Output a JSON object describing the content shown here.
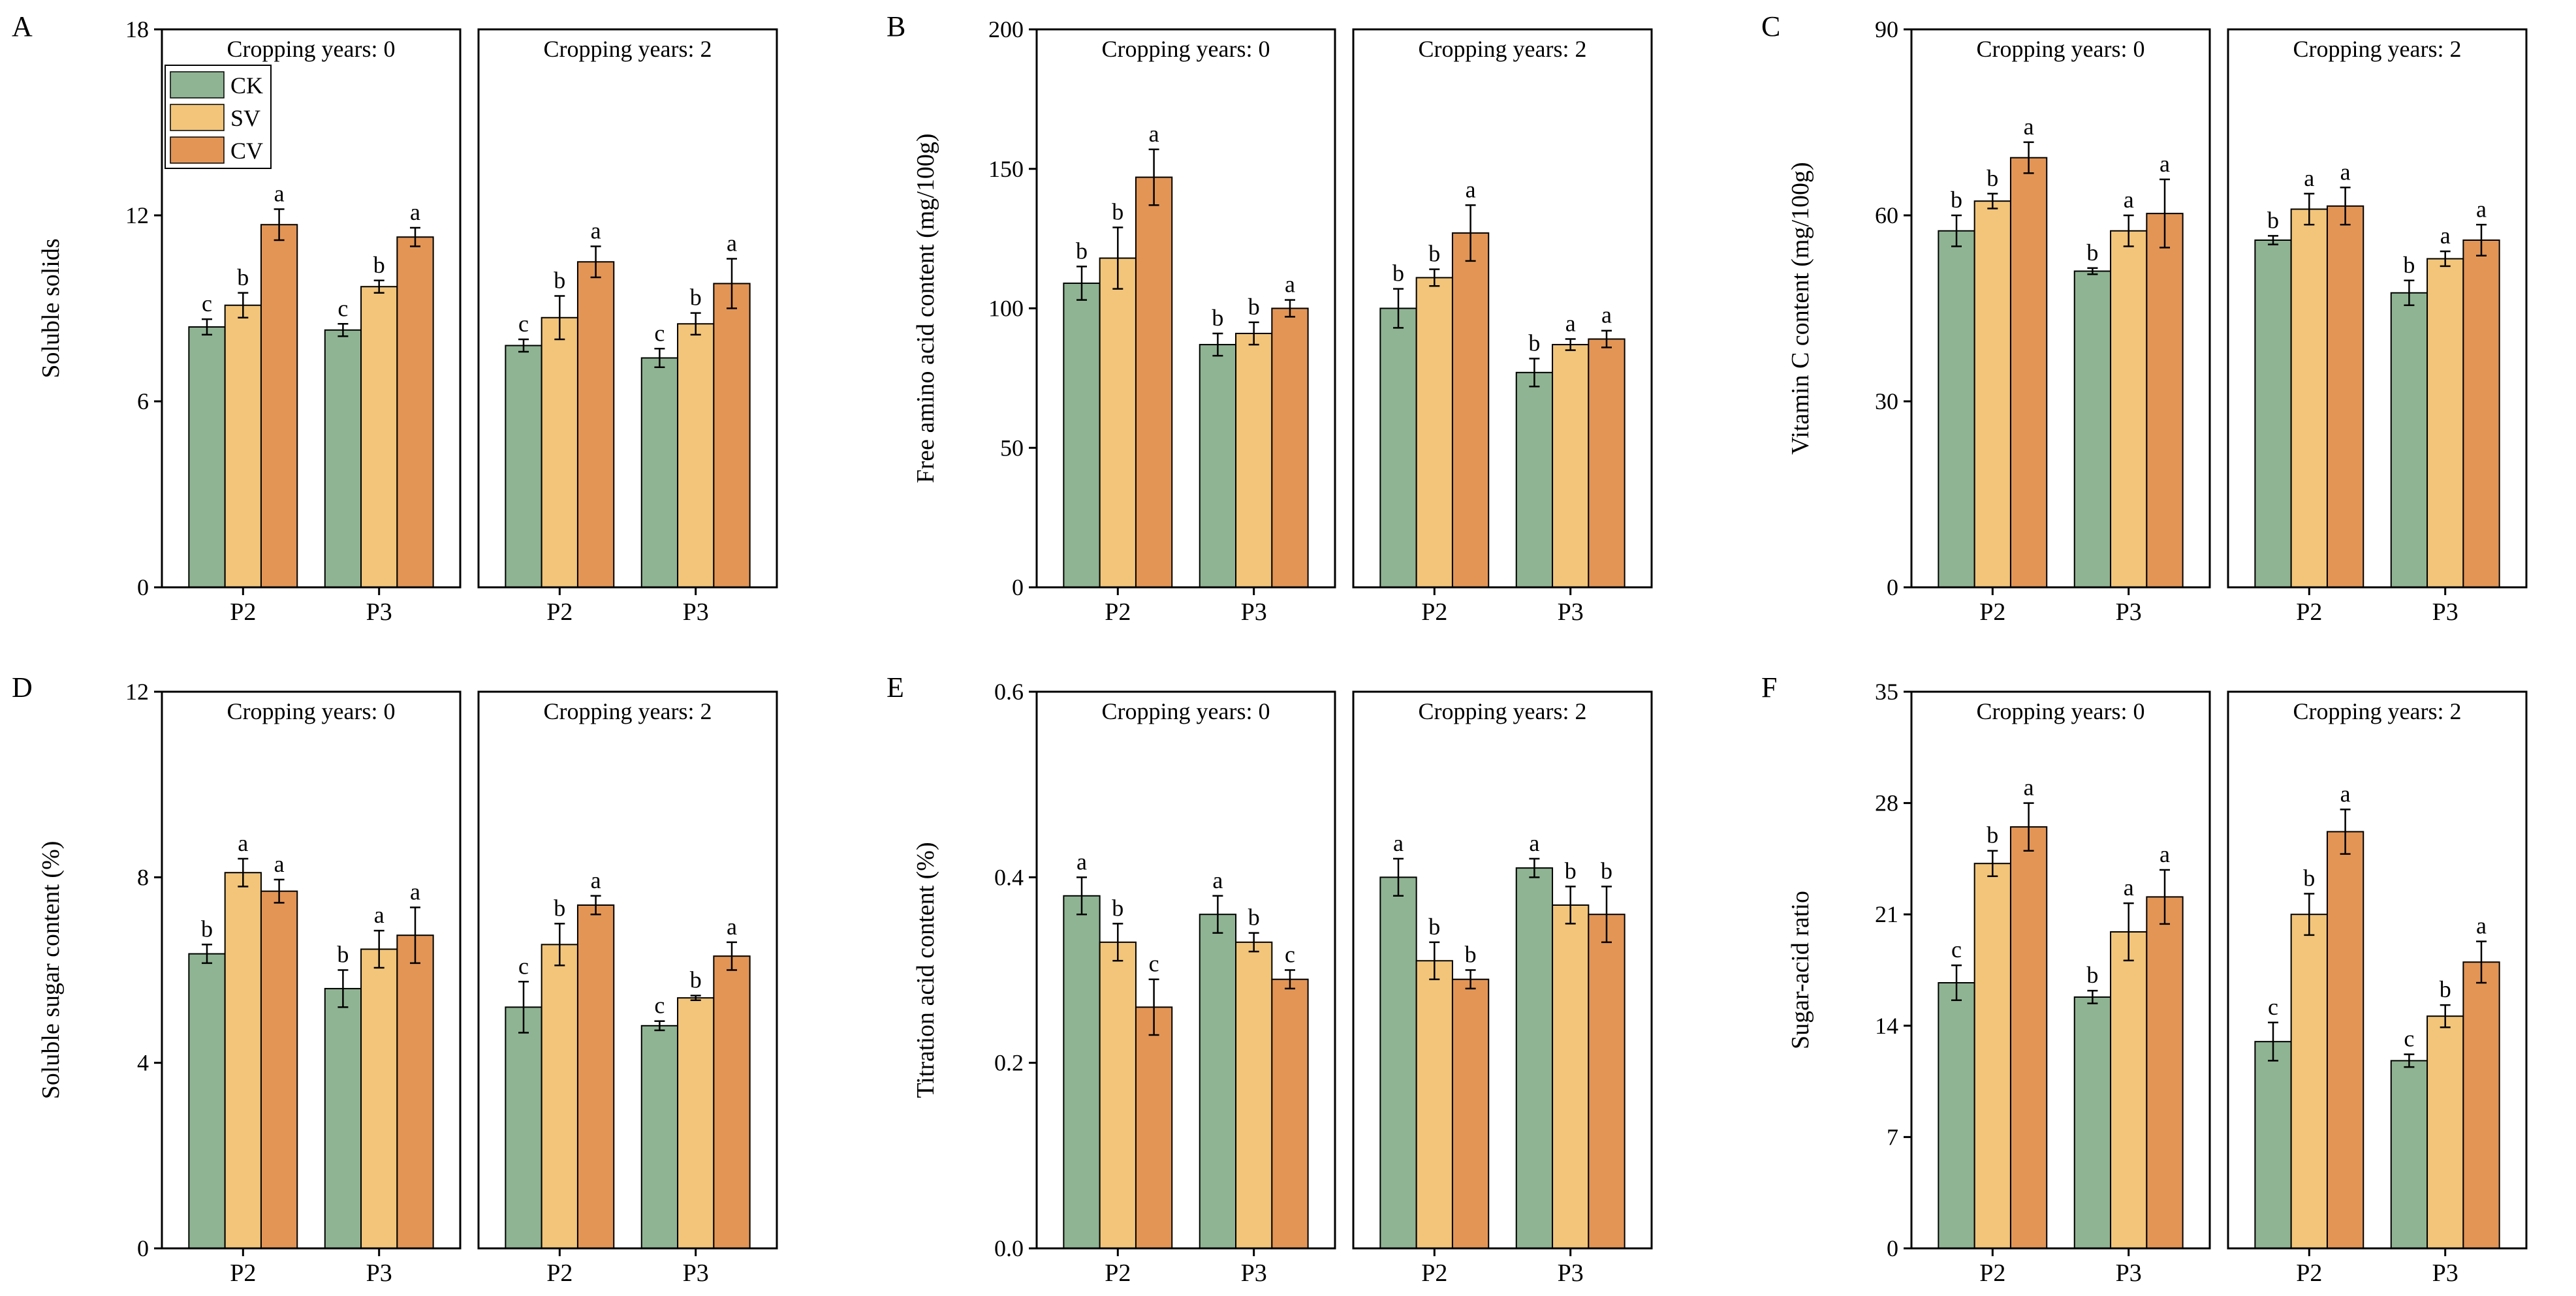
{
  "figure": {
    "legend": [
      {
        "key": "CK",
        "label": "CK"
      },
      {
        "key": "SV",
        "label": "SV"
      },
      {
        "key": "CV",
        "label": "CV"
      }
    ],
    "colors": {
      "CK": "#8fb493",
      "SV": "#f2c57a",
      "CV": "#e39556",
      "axis": "#000000",
      "background": "#ffffff"
    }
  },
  "chart_data": [
    {
      "id": "A",
      "panel_label": "A",
      "type": "bar",
      "ylabel": "Soluble solids",
      "ylim": [
        0,
        18
      ],
      "yticks": [
        0,
        6,
        12,
        18
      ],
      "show_legend": true,
      "series": [
        "CK",
        "SV",
        "CV"
      ],
      "subplots": [
        {
          "title": "Cropping years: 0",
          "categories": [
            "P2",
            "P3"
          ],
          "values": [
            [
              8.4,
              9.1,
              11.7
            ],
            [
              8.3,
              9.7,
              11.3
            ]
          ],
          "errors": [
            [
              0.25,
              0.4,
              0.5
            ],
            [
              0.2,
              0.2,
              0.3
            ]
          ],
          "letters": [
            [
              "c",
              "b",
              "a"
            ],
            [
              "c",
              "b",
              "a"
            ]
          ]
        },
        {
          "title": "Cropping years: 2",
          "categories": [
            "P2",
            "P3"
          ],
          "values": [
            [
              7.8,
              8.7,
              10.5
            ],
            [
              7.4,
              8.5,
              9.8
            ]
          ],
          "errors": [
            [
              0.2,
              0.7,
              0.5
            ],
            [
              0.3,
              0.35,
              0.8
            ]
          ],
          "letters": [
            [
              "c",
              "b",
              "a"
            ],
            [
              "c",
              "b",
              "a"
            ]
          ]
        }
      ]
    },
    {
      "id": "B",
      "panel_label": "B",
      "type": "bar",
      "ylabel": "Free amino acid content (mg/100g)",
      "ylim": [
        0,
        200
      ],
      "yticks": [
        0,
        50,
        100,
        150,
        200
      ],
      "show_legend": false,
      "series": [
        "CK",
        "SV",
        "CV"
      ],
      "subplots": [
        {
          "title": "Cropping years: 0",
          "categories": [
            "P2",
            "P3"
          ],
          "values": [
            [
              109,
              118,
              147
            ],
            [
              87,
              91,
              100
            ]
          ],
          "errors": [
            [
              6,
              11,
              10
            ],
            [
              4,
              4,
              3
            ]
          ],
          "letters": [
            [
              "b",
              "b",
              "a"
            ],
            [
              "b",
              "b",
              "a"
            ]
          ]
        },
        {
          "title": "Cropping years: 2",
          "categories": [
            "P2",
            "P3"
          ],
          "values": [
            [
              100,
              111,
              127
            ],
            [
              77,
              87,
              89
            ]
          ],
          "errors": [
            [
              7,
              3,
              10
            ],
            [
              5,
              2,
              3
            ]
          ],
          "letters": [
            [
              "b",
              "b",
              "a"
            ],
            [
              "b",
              "a",
              "a"
            ]
          ]
        }
      ]
    },
    {
      "id": "C",
      "panel_label": "C",
      "type": "bar",
      "ylabel": "Vitamin C content (mg/100g)",
      "ylim": [
        0,
        90
      ],
      "yticks": [
        0,
        30,
        60,
        90
      ],
      "show_legend": false,
      "series": [
        "CK",
        "SV",
        "CV"
      ],
      "subplots": [
        {
          "title": "Cropping years: 0",
          "categories": [
            "P2",
            "P3"
          ],
          "values": [
            [
              57.5,
              62.3,
              69.3
            ],
            [
              51,
              57.5,
              60.3
            ]
          ],
          "errors": [
            [
              2.5,
              1.2,
              2.5
            ],
            [
              0.5,
              2.5,
              5.5
            ]
          ],
          "letters": [
            [
              "b",
              "b",
              "a"
            ],
            [
              "b",
              "a",
              "a"
            ]
          ]
        },
        {
          "title": "Cropping years: 2",
          "categories": [
            "P2",
            "P3"
          ],
          "values": [
            [
              56,
              61,
              61.5
            ],
            [
              47.5,
              53,
              56
            ]
          ],
          "errors": [
            [
              0.7,
              2.5,
              3
            ],
            [
              2,
              1.2,
              2.5
            ]
          ],
          "letters": [
            [
              "b",
              "a",
              "a"
            ],
            [
              "b",
              "a",
              "a"
            ]
          ]
        }
      ]
    },
    {
      "id": "D",
      "panel_label": "D",
      "type": "bar",
      "ylabel": "Soluble sugar content (%)",
      "ylim": [
        0,
        12
      ],
      "yticks": [
        0,
        4,
        8,
        12
      ],
      "show_legend": false,
      "series": [
        "CK",
        "SV",
        "CV"
      ],
      "subplots": [
        {
          "title": "Cropping years: 0",
          "categories": [
            "P2",
            "P3"
          ],
          "values": [
            [
              6.35,
              8.1,
              7.7
            ],
            [
              5.6,
              6.45,
              6.75
            ]
          ],
          "errors": [
            [
              0.2,
              0.3,
              0.25
            ],
            [
              0.4,
              0.4,
              0.6
            ]
          ],
          "letters": [
            [
              "b",
              "a",
              "a"
            ],
            [
              "b",
              "a",
              "a"
            ]
          ]
        },
        {
          "title": "Cropping years: 2",
          "categories": [
            "P2",
            "P3"
          ],
          "values": [
            [
              5.2,
              6.55,
              7.4
            ],
            [
              4.8,
              5.4,
              6.3
            ]
          ],
          "errors": [
            [
              0.55,
              0.45,
              0.2
            ],
            [
              0.1,
              0.05,
              0.3
            ]
          ],
          "letters": [
            [
              "c",
              "b",
              "a"
            ],
            [
              "c",
              "b",
              "a"
            ]
          ]
        }
      ]
    },
    {
      "id": "E",
      "panel_label": "E",
      "type": "bar",
      "ylabel": "Titration acid content (%)",
      "ylim": [
        0,
        0.6
      ],
      "yticks": [
        0,
        0.2,
        0.4,
        0.6
      ],
      "ytick_labels": [
        "0.0",
        "0.2",
        "0.4",
        "0.6"
      ],
      "show_legend": false,
      "series": [
        "CK",
        "SV",
        "CV"
      ],
      "subplots": [
        {
          "title": "Cropping years: 0",
          "categories": [
            "P2",
            "P3"
          ],
          "values": [
            [
              0.38,
              0.33,
              0.26
            ],
            [
              0.36,
              0.33,
              0.29
            ]
          ],
          "errors": [
            [
              0.02,
              0.02,
              0.03
            ],
            [
              0.02,
              0.01,
              0.01
            ]
          ],
          "letters": [
            [
              "a",
              "b",
              "c"
            ],
            [
              "a",
              "b",
              "c"
            ]
          ]
        },
        {
          "title": "Cropping years: 2",
          "categories": [
            "P2",
            "P3"
          ],
          "values": [
            [
              0.4,
              0.31,
              0.29
            ],
            [
              0.41,
              0.37,
              0.36
            ]
          ],
          "errors": [
            [
              0.02,
              0.02,
              0.01
            ],
            [
              0.01,
              0.02,
              0.03
            ]
          ],
          "letters": [
            [
              "a",
              "b",
              "b"
            ],
            [
              "a",
              "b",
              "b"
            ]
          ]
        }
      ]
    },
    {
      "id": "F",
      "panel_label": "F",
      "type": "bar",
      "ylabel": "Sugar-acid ratio",
      "ylim": [
        0,
        35
      ],
      "yticks": [
        0,
        7,
        14,
        21,
        28,
        35
      ],
      "show_legend": false,
      "series": [
        "CK",
        "SV",
        "CV"
      ],
      "subplots": [
        {
          "title": "Cropping years: 0",
          "categories": [
            "P2",
            "P3"
          ],
          "values": [
            [
              16.7,
              24.2,
              26.5
            ],
            [
              15.8,
              19.9,
              22.1
            ]
          ],
          "errors": [
            [
              1.1,
              0.8,
              1.5
            ],
            [
              0.4,
              1.8,
              1.7
            ]
          ],
          "letters": [
            [
              "c",
              "b",
              "a"
            ],
            [
              "b",
              "a",
              "a"
            ]
          ]
        },
        {
          "title": "Cropping years: 2",
          "categories": [
            "P2",
            "P3"
          ],
          "values": [
            [
              13,
              21,
              26.2
            ],
            [
              11.8,
              14.6,
              18
            ]
          ],
          "errors": [
            [
              1.2,
              1.3,
              1.4
            ],
            [
              0.4,
              0.7,
              1.3
            ]
          ],
          "letters": [
            [
              "c",
              "b",
              "a"
            ],
            [
              "c",
              "b",
              "a"
            ]
          ]
        }
      ]
    }
  ]
}
